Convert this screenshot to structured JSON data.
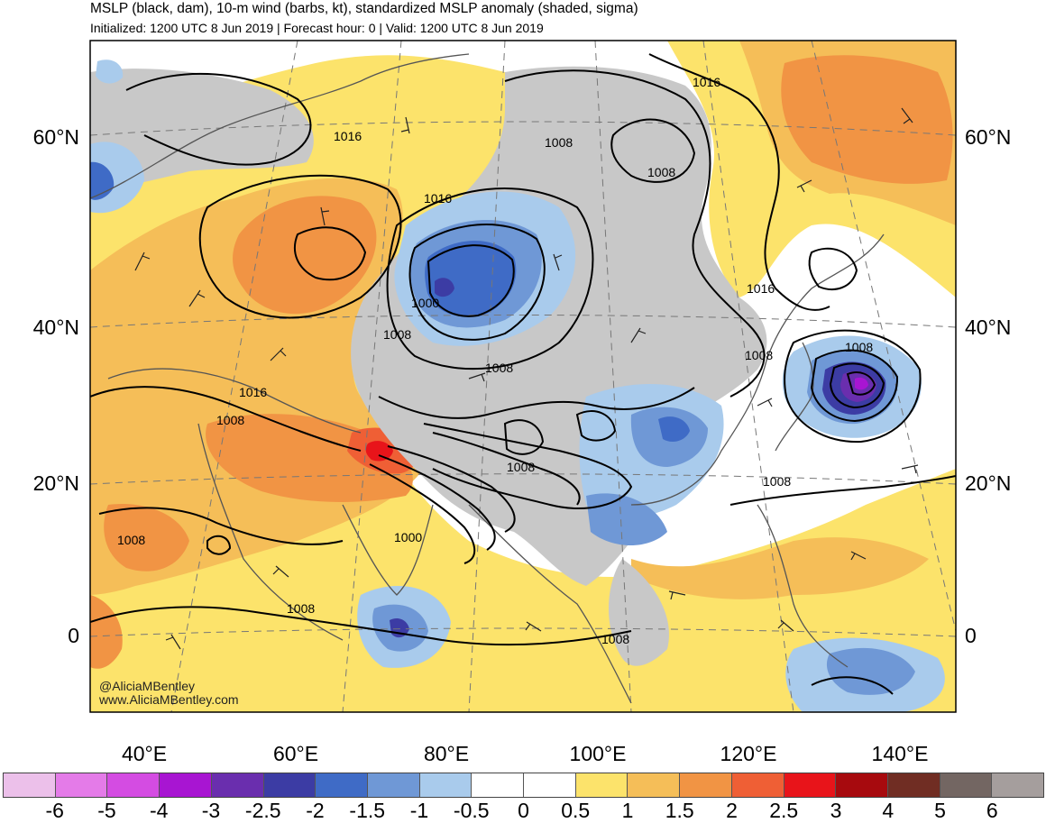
{
  "header": {
    "title": "MSLP (black, dam), 10-m wind (barbs, kt), standardized MSLP anomaly (shaded, sigma)",
    "subtitle": "Initialized: 1200 UTC 8 Jun 2019 | Forecast hour: 0 | Valid: 1200 UTC 8 Jun 2019"
  },
  "axes": {
    "lat_labels": [
      "60°N",
      "40°N",
      "20°N",
      "0"
    ],
    "lon_labels": [
      "40°E",
      "60°E",
      "80°E",
      "100°E",
      "120°E",
      "140°E"
    ]
  },
  "isobar_labels": [
    "1016",
    "1016",
    "1016",
    "1016",
    "1008",
    "1008",
    "1008",
    "1008",
    "1008",
    "1008",
    "1008",
    "1008",
    "1008",
    "1008",
    "1000",
    "1000",
    "1016"
  ],
  "colorbar": {
    "labels": [
      "-6",
      "-5",
      "-4",
      "-3",
      "-2.5",
      "-2",
      "-1.5",
      "-1",
      "-0.5",
      "0",
      "0.5",
      "1",
      "1.5",
      "2",
      "2.5",
      "3",
      "4",
      "5",
      "6"
    ],
    "colors": [
      "#ecc0ea",
      "#e47be8",
      "#d44ce2",
      "#a815d2",
      "#6a2eae",
      "#3c3ca4",
      "#3f6bc6",
      "#6f98d6",
      "#a9cbec",
      "#ffffff",
      "#ffffff",
      "#fce36b",
      "#f5be58",
      "#f19444",
      "#ef5f35",
      "#e8141a",
      "#a70a0e",
      "#702d23",
      "#736662",
      "#a59e9d"
    ]
  },
  "credits": {
    "handle": "@AliciaMBentley",
    "site": "www.AliciaMBentley.com"
  }
}
